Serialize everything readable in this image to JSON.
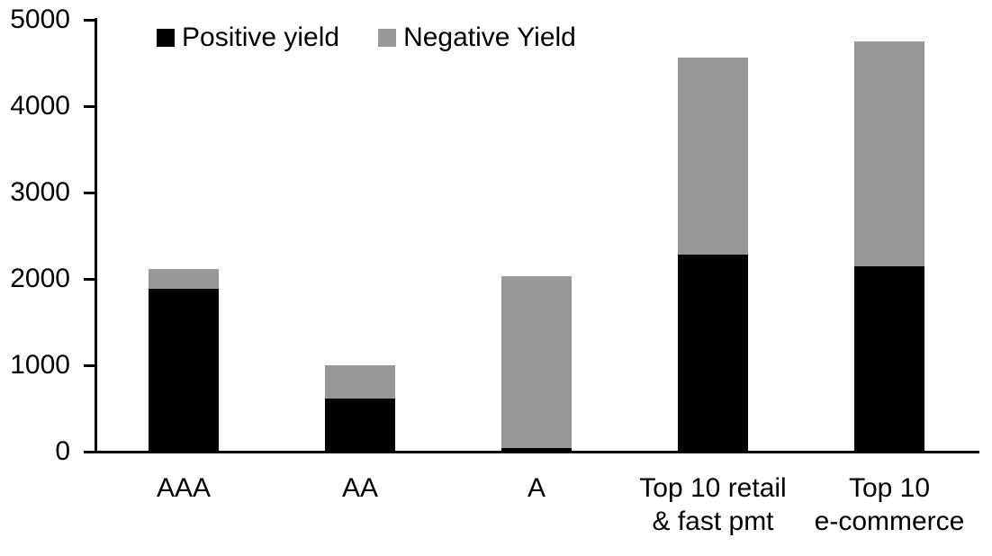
{
  "chart_data": {
    "type": "bar",
    "stacked": true,
    "categories": [
      "AAA",
      "AA",
      "A",
      "Top 10 retail\n& fast pmt",
      "Top 10\ne-commerce"
    ],
    "series": [
      {
        "name": "Positive yield",
        "color": "#000000",
        "values": [
          1890,
          620,
          45,
          2280,
          2145
        ]
      },
      {
        "name": "Negative Yield",
        "color": "#989898",
        "values": [
          230,
          380,
          1985,
          2280,
          2605
        ]
      }
    ],
    "ylim": [
      0,
      5000
    ],
    "yticks": [
      0,
      1000,
      2000,
      3000,
      4000,
      5000
    ],
    "grid": false,
    "legend_position": "top",
    "axis_color": "#000000",
    "background_color": "#ffffff"
  }
}
